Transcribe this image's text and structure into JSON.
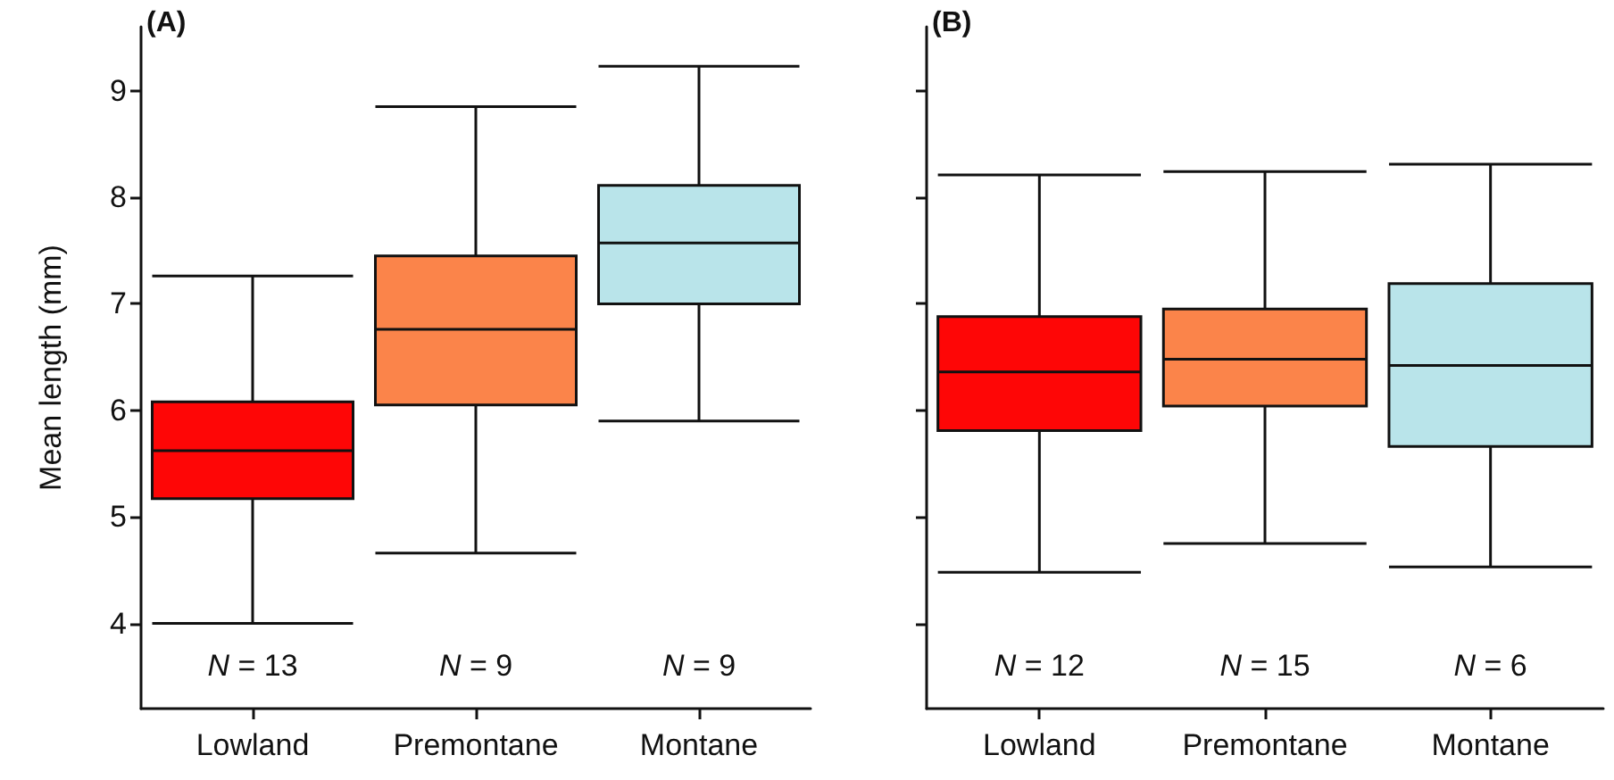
{
  "chart_data": [
    {
      "type": "box",
      "title": "(A)",
      "ylabel": "Mean length (mm)",
      "categories": [
        "Lowland",
        "Premontane",
        "Montane"
      ],
      "colors": [
        "#fe0606",
        "#fb844a",
        "#b9e4ea"
      ],
      "boxes": [
        {
          "low": 4.0,
          "q1": 5.17,
          "median": 5.62,
          "q3": 6.08,
          "high": 7.26
        },
        {
          "low": 4.66,
          "q1": 6.05,
          "median": 6.76,
          "q3": 7.45,
          "high": 8.85
        },
        {
          "low": 5.9,
          "q1": 7.0,
          "median": 7.57,
          "q3": 8.11,
          "high": 9.23
        }
      ],
      "ylim": [
        3.2,
        9.6
      ],
      "yticks": [
        4,
        5,
        6,
        7,
        8,
        9
      ],
      "grid": false,
      "annotations": [
        "N = 13",
        "N = 9",
        "N = 9"
      ]
    },
    {
      "type": "box",
      "title": "(B)",
      "categories": [
        "Lowland",
        "Premontane",
        "Montane"
      ],
      "colors": [
        "#fe0606",
        "#fb844a",
        "#b9e4ea"
      ],
      "boxes": [
        {
          "low": 4.48,
          "q1": 5.81,
          "median": 6.36,
          "q3": 6.88,
          "high": 8.21
        },
        {
          "low": 4.75,
          "q1": 6.04,
          "median": 6.48,
          "q3": 6.95,
          "high": 8.24
        },
        {
          "low": 4.53,
          "q1": 5.66,
          "median": 6.42,
          "q3": 7.19,
          "high": 8.31
        }
      ],
      "ylim": [
        3.2,
        9.6
      ],
      "yticks": [
        4,
        5,
        6,
        7,
        8,
        9
      ],
      "grid": false,
      "tick_labels": "x",
      "annotations": [
        "N = 12",
        "N = 15",
        "N = 6"
      ]
    }
  ]
}
